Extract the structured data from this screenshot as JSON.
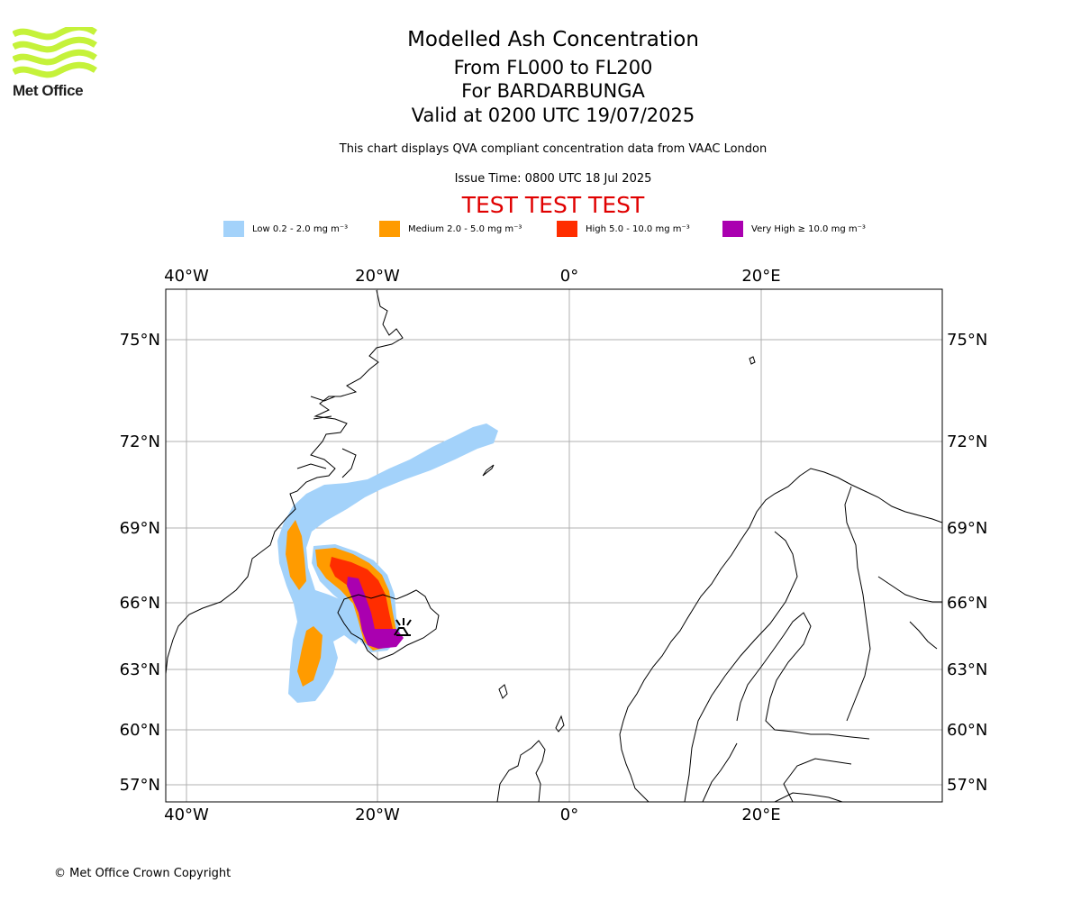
{
  "header": {
    "logo_text": "Met Office",
    "title": "Modelled Ash Concentration",
    "level_range": "From FL000 to FL200",
    "volcano": "For BARDARBUNGA",
    "valid_time": "Valid at 0200 UTC 19/07/2025",
    "description": "This chart displays QVA compliant concentration data from VAAC London",
    "issue_time": "Issue Time: 0800 UTC 18 Jul 2025",
    "test_banner": "TEST TEST TEST"
  },
  "legend": {
    "low": {
      "label": "Low 0.2 - 2.0 mg m⁻³",
      "color": "#a3d2fa"
    },
    "medium": {
      "label": "Medium 2.0 - 5.0 mg m⁻³",
      "color": "#ff9b00"
    },
    "high": {
      "label": "High 5.0 - 10.0 mg m⁻³",
      "color": "#ff2d00"
    },
    "very_high": {
      "label": "Very High ≥ 10.0 mg m⁻³",
      "color": "#aa00b0"
    }
  },
  "map": {
    "lon_labels": {
      "w40": "40°W",
      "w20": "20°W",
      "zero": "0°",
      "e20": "20°E"
    },
    "lat_labels": {
      "n75": "75°N",
      "n72": "72°N",
      "n69": "69°N",
      "n66": "66°N",
      "n63": "63°N",
      "n60": "60°N",
      "n57": "57°N"
    },
    "volcano_marker": "volcano-icon"
  },
  "footer": {
    "copyright": "© Met Office Crown Copyright"
  }
}
